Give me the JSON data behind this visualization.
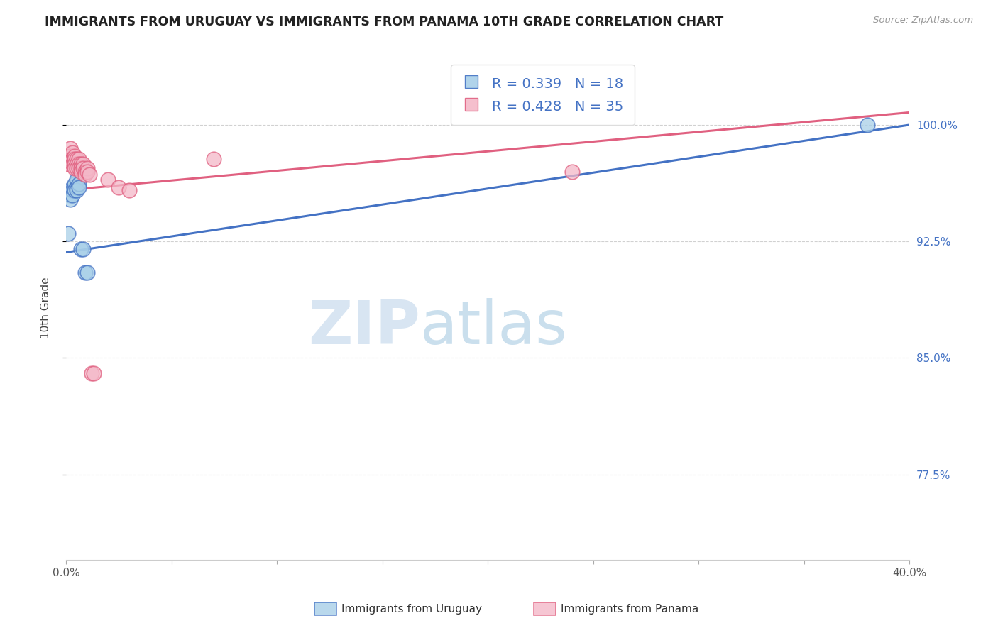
{
  "title": "IMMIGRANTS FROM URUGUAY VS IMMIGRANTS FROM PANAMA 10TH GRADE CORRELATION CHART",
  "source": "Source: ZipAtlas.com",
  "ylabel": "10th Grade",
  "ylabel_right_labels": [
    "100.0%",
    "92.5%",
    "85.0%",
    "77.5%"
  ],
  "ylabel_right_values": [
    1.0,
    0.925,
    0.85,
    0.775
  ],
  "xmin": 0.0,
  "xmax": 0.4,
  "ymin": 0.72,
  "ymax": 1.045,
  "uruguay_R": 0.339,
  "uruguay_N": 18,
  "panama_R": 0.428,
  "panama_N": 35,
  "legend_label_uruguay": "Immigrants from Uruguay",
  "legend_label_panama": "Immigrants from Panama",
  "uruguay_color": "#a8cfe8",
  "panama_color": "#f4b8c8",
  "line_color_uruguay": "#4472c4",
  "line_color_panama": "#e06080",
  "watermark_zip": "ZIP",
  "watermark_atlas": "atlas",
  "grid_color": "#cccccc",
  "background_color": "#ffffff",
  "title_color": "#222222",
  "right_axis_color": "#4472c4",
  "uruguay_x": [
    0.001,
    0.002,
    0.002,
    0.003,
    0.003,
    0.003,
    0.004,
    0.004,
    0.005,
    0.005,
    0.005,
    0.006,
    0.006,
    0.007,
    0.008,
    0.009,
    0.01,
    0.38
  ],
  "uruguay_y": [
    0.93,
    0.955,
    0.952,
    0.96,
    0.958,
    0.955,
    0.962,
    0.958,
    0.965,
    0.96,
    0.958,
    0.962,
    0.96,
    0.92,
    0.92,
    0.905,
    0.905,
    1.0
  ],
  "panama_x": [
    0.001,
    0.001,
    0.002,
    0.002,
    0.002,
    0.003,
    0.003,
    0.003,
    0.004,
    0.004,
    0.004,
    0.004,
    0.005,
    0.005,
    0.005,
    0.006,
    0.006,
    0.006,
    0.007,
    0.007,
    0.007,
    0.008,
    0.008,
    0.009,
    0.009,
    0.01,
    0.01,
    0.011,
    0.012,
    0.013,
    0.02,
    0.025,
    0.03,
    0.07,
    0.24
  ],
  "panama_y": [
    0.98,
    0.975,
    0.985,
    0.98,
    0.978,
    0.982,
    0.978,
    0.975,
    0.98,
    0.978,
    0.975,
    0.972,
    0.978,
    0.975,
    0.972,
    0.978,
    0.975,
    0.972,
    0.975,
    0.972,
    0.97,
    0.975,
    0.972,
    0.97,
    0.968,
    0.972,
    0.97,
    0.968,
    0.84,
    0.84,
    0.965,
    0.96,
    0.958,
    0.978,
    0.97
  ],
  "ury_line_x0": 0.0,
  "ury_line_x1": 0.4,
  "ury_line_y0": 0.918,
  "ury_line_y1": 1.0,
  "pan_line_x0": 0.0,
  "pan_line_x1": 0.4,
  "pan_line_y0": 0.958,
  "pan_line_y1": 1.008
}
